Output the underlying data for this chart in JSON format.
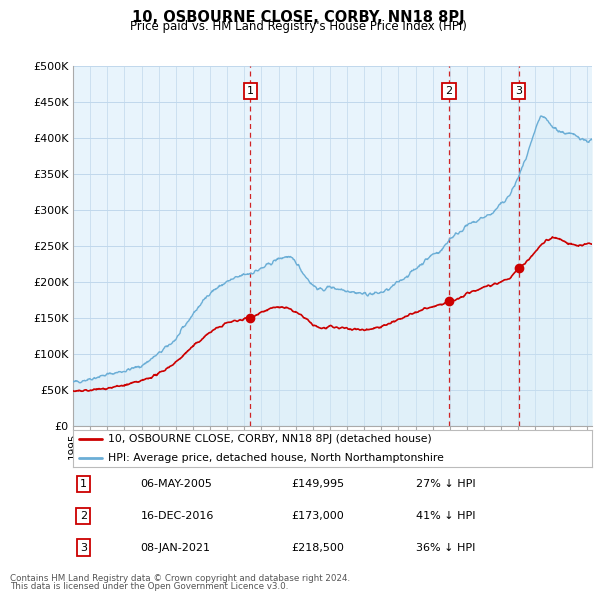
{
  "title": "10, OSBOURNE CLOSE, CORBY, NN18 8PJ",
  "subtitle": "Price paid vs. HM Land Registry's House Price Index (HPI)",
  "ylabel_ticks": [
    "£0",
    "£50K",
    "£100K",
    "£150K",
    "£200K",
    "£250K",
    "£300K",
    "£350K",
    "£400K",
    "£450K",
    "£500K"
  ],
  "ytick_values": [
    0,
    50000,
    100000,
    150000,
    200000,
    250000,
    300000,
    350000,
    400000,
    450000,
    500000
  ],
  "ylim": [
    0,
    500000
  ],
  "xlim_start": 1995.0,
  "xlim_end": 2025.3,
  "hpi_color": "#6baed6",
  "hpi_fill_color": "#d0e8f5",
  "price_color": "#cc0000",
  "dashed_color": "#cc0000",
  "transactions": [
    {
      "num": 1,
      "date_str": "06-MAY-2005",
      "year": 2005.35,
      "price": 149995,
      "pct": "27%"
    },
    {
      "num": 2,
      "date_str": "16-DEC-2016",
      "year": 2016.96,
      "price": 173000,
      "pct": "41%"
    },
    {
      "num": 3,
      "date_str": "08-JAN-2021",
      "year": 2021.03,
      "price": 218500,
      "pct": "36%"
    }
  ],
  "legend_label_red": "10, OSBOURNE CLOSE, CORBY, NN18 8PJ (detached house)",
  "legend_label_blue": "HPI: Average price, detached house, North Northamptonshire",
  "footer1": "Contains HM Land Registry data © Crown copyright and database right 2024.",
  "footer2": "This data is licensed under the Open Government Licence v3.0.",
  "background_color": "#ffffff",
  "plot_bg_color": "#e8f4fc",
  "grid_color": "#c0d8ec"
}
